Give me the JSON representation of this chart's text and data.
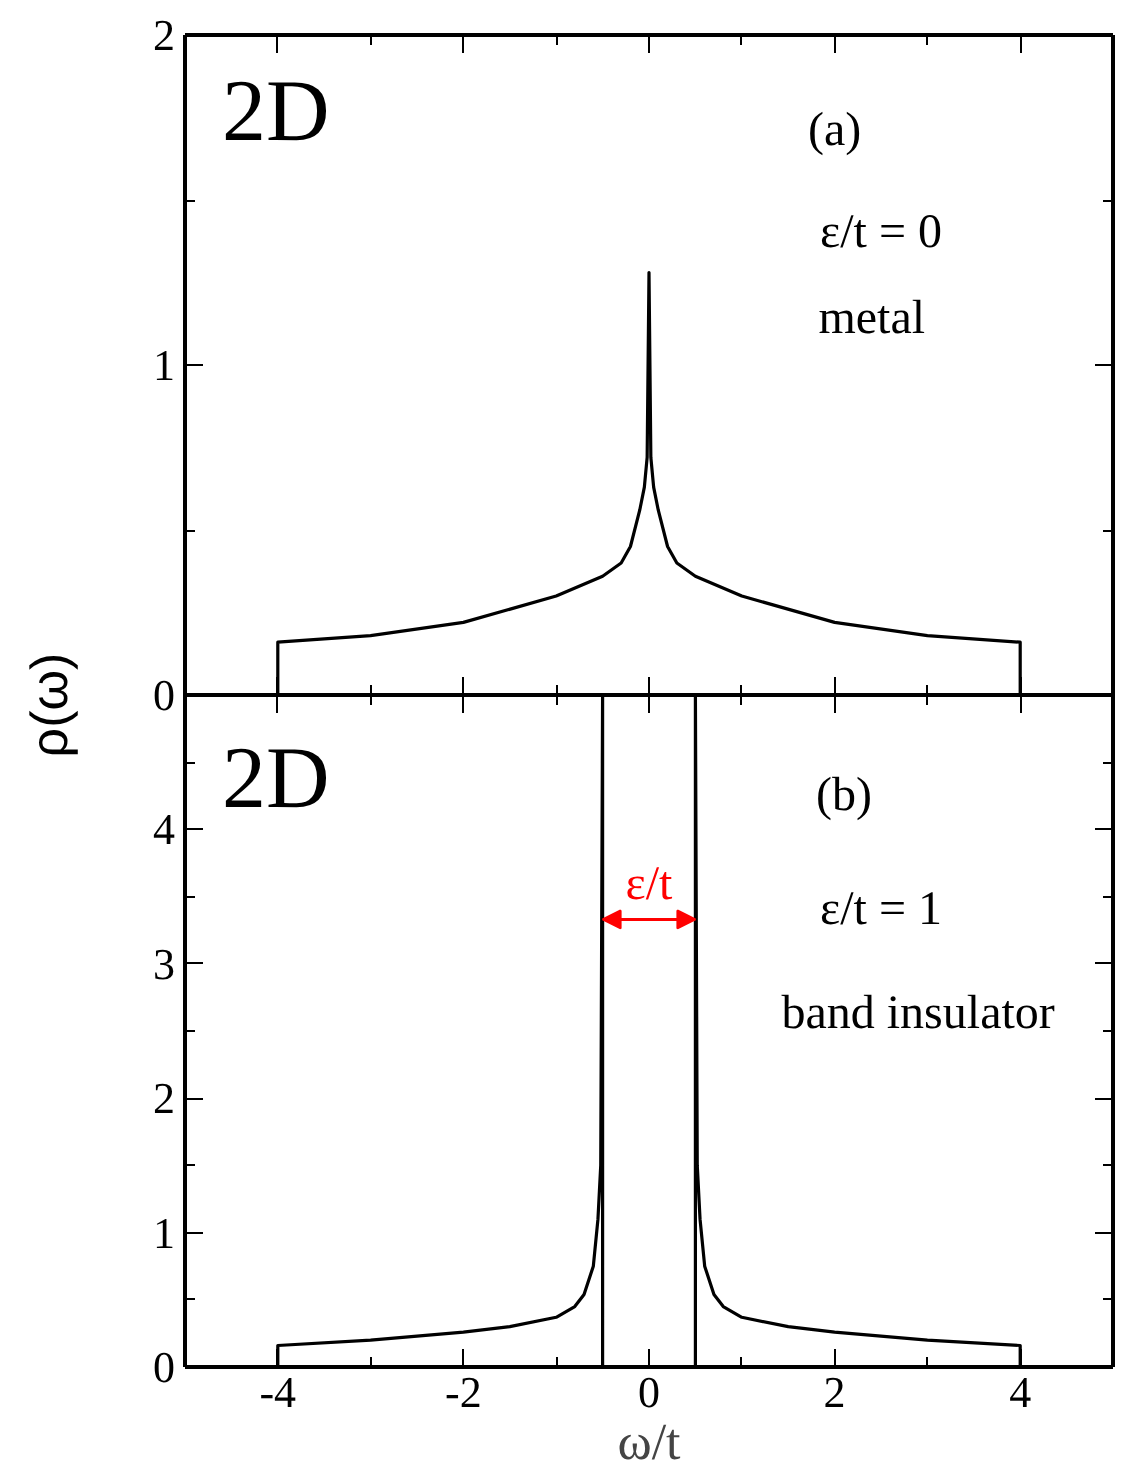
{
  "chart_data": [
    {
      "type": "line",
      "annotations": [
        "2D",
        "(a)",
        "ε/t = 0",
        "metal"
      ],
      "xlim": [
        -5,
        5
      ],
      "ylim": [
        0,
        2
      ],
      "xticks": [
        {
          "value": -5,
          "label": null
        },
        -4,
        {
          "value": -3,
          "label": null
        },
        -2,
        {
          "value": -1,
          "label": null
        },
        0,
        {
          "value": 1,
          "label": null
        },
        2,
        {
          "value": 3,
          "label": null
        },
        4,
        {
          "value": 5,
          "label": null
        }
      ],
      "yticks": [
        0,
        {
          "value": 0.5,
          "label": null
        },
        1,
        {
          "value": 1.5,
          "label": null
        },
        2
      ],
      "tick_labels": "y",
      "series": [
        {
          "color": "#000000",
          "x": [
            -4,
            -4,
            -3,
            -2,
            -1,
            -0.5,
            -0.3,
            -0.2,
            -0.1,
            -0.05,
            -0.02,
            0,
            0,
            0.02,
            0.05,
            0.1,
            0.2,
            0.3,
            0.5,
            1,
            2,
            3,
            4,
            4
          ],
          "values": [
            0,
            0.16,
            0.18,
            0.22,
            0.3,
            0.36,
            0.4,
            0.45,
            0.56,
            0.63,
            0.72,
            1.28,
            1.28,
            0.72,
            0.63,
            0.56,
            0.45,
            0.4,
            0.36,
            0.3,
            0.22,
            0.18,
            0.16,
            0
          ]
        }
      ]
    },
    {
      "type": "line",
      "xlabel": "ω/t",
      "ylabel": "ρ(ω)",
      "annotations": [
        "2D",
        "(b)",
        "ε/t = 1",
        "band insulator",
        "ε/t"
      ],
      "xlim": [
        -5,
        5
      ],
      "ylim": [
        0,
        5
      ],
      "xticks": [
        {
          "value": -5,
          "label": null
        },
        -4,
        {
          "value": -3,
          "label": null
        },
        -2,
        {
          "value": -1,
          "label": null
        },
        0,
        {
          "value": 1,
          "label": null
        },
        2,
        {
          "value": 3,
          "label": null
        },
        4,
        {
          "value": 5,
          "label": null
        }
      ],
      "yticks": [
        0,
        {
          "value": 0.5,
          "label": null
        },
        1,
        {
          "value": 1.5,
          "label": null
        },
        2,
        {
          "value": 2.5,
          "label": null
        },
        3,
        {
          "value": 3.5,
          "label": null
        },
        4,
        {
          "value": 4.5,
          "label": null
        },
        {
          "value": 5,
          "label": null
        }
      ],
      "series": [
        {
          "color": "#000000",
          "x": [
            -4,
            -4,
            -3,
            -2,
            -1.5,
            -1,
            -0.8,
            -0.7,
            -0.6,
            -0.55,
            -0.52,
            -0.5,
            -0.5,
            null,
            0.5,
            0.5,
            0.52,
            0.55,
            0.6,
            0.7,
            0.8,
            1,
            1.5,
            2,
            3,
            4,
            4
          ],
          "values": [
            0,
            0.16,
            0.2,
            0.26,
            0.3,
            0.37,
            0.45,
            0.54,
            0.75,
            1.1,
            1.5,
            5,
            0,
            null,
            0,
            5,
            1.5,
            1.1,
            0.75,
            0.54,
            0.45,
            0.37,
            0.3,
            0.26,
            0.2,
            0.16,
            0
          ]
        }
      ]
    }
  ]
}
